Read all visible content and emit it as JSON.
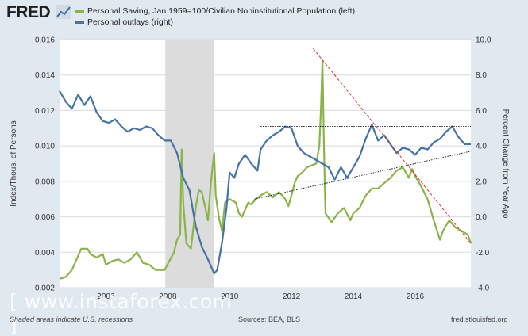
{
  "header": {
    "logo_text": "FRED",
    "logo_icon": "chart-line-icon"
  },
  "footer": {
    "recession_note": "Shaded areas indicate U.S. recessions",
    "sources": "Sources: BEA, BLS",
    "site": "fred.stlouisfed.org"
  },
  "watermark": {
    "text": "[ www.instaforex.com ]"
  },
  "chart_data": {
    "type": "line",
    "left_axis": {
      "label": "Index/Thous. of Persons",
      "ylim": [
        0.002,
        0.016
      ],
      "ticks": [
        "0.002",
        "0.004",
        "0.006",
        "0.008",
        "0.010",
        "0.012",
        "0.014",
        "0.016"
      ]
    },
    "right_axis": {
      "label": "Percent Change from Year Ago",
      "ylim": [
        -4.0,
        10.0
      ],
      "ticks": [
        "-4.0",
        "-2.0",
        "0.0",
        "2.0",
        "4.0",
        "6.0",
        "8.0",
        "10.0"
      ]
    },
    "x_axis": {
      "xlim": [
        2004.5,
        2017.8
      ],
      "ticks": [
        "2006",
        "2008",
        "2010",
        "2012",
        "2014",
        "2016"
      ],
      "tick_values": [
        2006,
        2008,
        2010,
        2012,
        2014,
        2016
      ]
    },
    "recession": [
      2007.92,
      2009.5
    ],
    "grid": "horizontal",
    "series": [
      {
        "name": "Personal Saving, Jan 1959=100/Civilian Noninstitutional Population (left)",
        "axis": "left",
        "color": "#8ab449",
        "x": [
          2004.5,
          2004.7,
          2004.9,
          2005.2,
          2005.4,
          2005.5,
          2005.7,
          2005.9,
          2006.0,
          2006.2,
          2006.4,
          2006.6,
          2006.8,
          2007.0,
          2007.2,
          2007.4,
          2007.6,
          2007.9,
          2008.2,
          2008.3,
          2008.4,
          2008.45,
          2008.5,
          2008.6,
          2008.75,
          2008.9,
          2009.0,
          2009.1,
          2009.2,
          2009.3,
          2009.4,
          2009.5,
          2009.55,
          2009.65,
          2009.75,
          2009.85,
          2010.0,
          2010.2,
          2010.3,
          2010.4,
          2010.5,
          2010.6,
          2010.7,
          2010.85,
          2011.0,
          2011.2,
          2011.4,
          2011.6,
          2011.8,
          2011.9,
          2012.0,
          2012.1,
          2012.2,
          2012.35,
          2012.5,
          2012.65,
          2012.8,
          2012.9,
          2012.95,
          2013.0,
          2013.05,
          2013.1,
          2013.3,
          2013.5,
          2013.7,
          2013.9,
          2014.0,
          2014.2,
          2014.4,
          2014.6,
          2014.8,
          2015.0,
          2015.2,
          2015.4,
          2015.6,
          2015.8,
          2015.9,
          2016.0,
          2016.2,
          2016.4,
          2016.6,
          2016.8,
          2016.9,
          2017.1,
          2017.3,
          2017.5,
          2017.7,
          2017.8
        ],
        "values": [
          0.0025,
          0.0026,
          0.003,
          0.0042,
          0.0042,
          0.0039,
          0.0037,
          0.0039,
          0.0033,
          0.0035,
          0.0036,
          0.0034,
          0.0036,
          0.004,
          0.0034,
          0.0033,
          0.003,
          0.003,
          0.004,
          0.0047,
          0.005,
          0.0098,
          0.0068,
          0.0045,
          0.0042,
          0.0065,
          0.0075,
          0.0074,
          0.0066,
          0.0058,
          0.008,
          0.0096,
          0.0072,
          0.006,
          0.0052,
          0.0068,
          0.007,
          0.0068,
          0.0062,
          0.006,
          0.0064,
          0.0068,
          0.0067,
          0.007,
          0.0072,
          0.0074,
          0.0071,
          0.0074,
          0.007,
          0.0066,
          0.0072,
          0.0079,
          0.0083,
          0.0085,
          0.0088,
          0.0089,
          0.009,
          0.01,
          0.012,
          0.0148,
          0.01,
          0.0062,
          0.0057,
          0.0062,
          0.0065,
          0.0058,
          0.0062,
          0.0065,
          0.0072,
          0.0076,
          0.0076,
          0.0079,
          0.0082,
          0.0086,
          0.0088,
          0.0082,
          0.0087,
          0.0083,
          0.0077,
          0.007,
          0.0058,
          0.0047,
          0.0052,
          0.0058,
          0.0054,
          0.0052,
          0.005,
          0.0045
        ]
      },
      {
        "name": "Personal outlays (right)",
        "axis": "right",
        "color": "#4572a7",
        "x": [
          2004.5,
          2004.7,
          2004.9,
          2005.1,
          2005.3,
          2005.5,
          2005.7,
          2005.9,
          2006.1,
          2006.3,
          2006.5,
          2006.7,
          2006.9,
          2007.1,
          2007.3,
          2007.5,
          2007.7,
          2007.9,
          2008.1,
          2008.3,
          2008.5,
          2008.7,
          2008.9,
          2009.1,
          2009.3,
          2009.5,
          2009.6,
          2009.75,
          2009.9,
          2010.0,
          2010.15,
          2010.3,
          2010.5,
          2010.7,
          2010.9,
          2011.0,
          2011.2,
          2011.4,
          2011.6,
          2011.8,
          2012.0,
          2012.2,
          2012.4,
          2012.6,
          2012.8,
          2013.0,
          2013.2,
          2013.4,
          2013.6,
          2013.8,
          2014.0,
          2014.2,
          2014.4,
          2014.6,
          2014.8,
          2015.0,
          2015.2,
          2015.4,
          2015.6,
          2015.8,
          2016.0,
          2016.2,
          2016.4,
          2016.6,
          2016.8,
          2017.0,
          2017.2,
          2017.4,
          2017.6,
          2017.8
        ],
        "values": [
          7.1,
          6.5,
          6.1,
          6.9,
          6.3,
          6.8,
          5.9,
          5.4,
          5.3,
          5.5,
          5.1,
          4.8,
          5.0,
          4.9,
          5.1,
          5.0,
          4.6,
          4.3,
          4.3,
          3.6,
          2.2,
          1.5,
          -0.5,
          -1.7,
          -2.4,
          -3.2,
          -3.0,
          -1.5,
          0.5,
          2.5,
          2.2,
          3.0,
          3.5,
          3.0,
          2.6,
          3.8,
          4.3,
          4.6,
          4.8,
          5.1,
          5.0,
          4.0,
          3.6,
          3.4,
          3.2,
          3.0,
          2.8,
          2.1,
          2.8,
          2.2,
          2.8,
          3.4,
          4.4,
          5.2,
          4.3,
          4.6,
          4.1,
          3.6,
          3.9,
          3.8,
          3.5,
          3.9,
          3.8,
          4.2,
          4.4,
          4.8,
          5.1,
          4.5,
          4.1,
          4.1
        ]
      }
    ],
    "annotations": [
      {
        "kind": "horizontal",
        "style": "dotted-black",
        "x": [
          2011.0,
          2017.8
        ],
        "y_right": 5.1
      },
      {
        "kind": "trend",
        "style": "dotted-black",
        "x": [
          2010.8,
          2017.8
        ],
        "y_left": [
          0.007,
          0.0097
        ]
      },
      {
        "kind": "trend",
        "style": "dashed-red",
        "x": [
          2012.7,
          2017.8
        ],
        "y_left": [
          0.0155,
          0.0045
        ]
      }
    ]
  }
}
